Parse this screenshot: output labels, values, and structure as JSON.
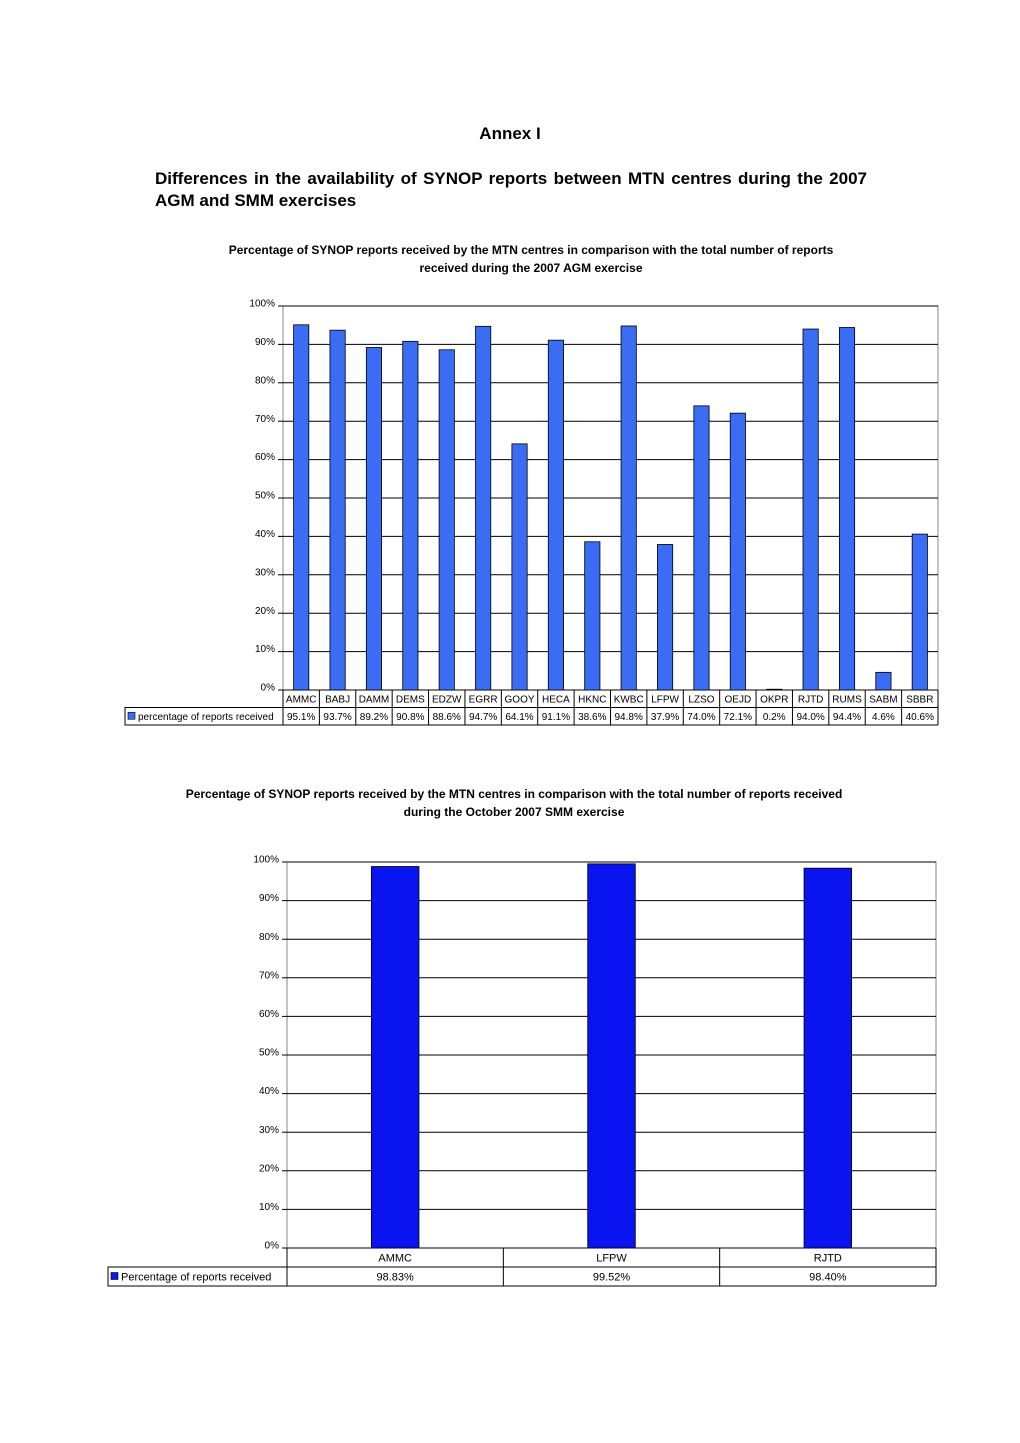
{
  "header": {
    "annex": "Annex I",
    "heading": "Differences in the availability of SYNOP reports between MTN centres during the 2007 AGM and SMM exercises"
  },
  "chart_data": [
    {
      "type": "bar",
      "title": "Percentage of SYNOP reports received by the MTN centres in comparison with the total number of reports received during the 2007 AGM exercise",
      "categories": [
        "AMMC",
        "BABJ",
        "DAMM",
        "DEMS",
        "EDZW",
        "EGRR",
        "GOOY",
        "HECA",
        "HKNC",
        "KWBC",
        "LFPW",
        "LZSO",
        "OEJD",
        "OKPR",
        "RJTD",
        "RUMS",
        "SABM",
        "SBBR"
      ],
      "series": [
        {
          "name": "percentage of reports received",
          "color": "#3a6cf4",
          "values": [
            95.1,
            93.7,
            89.2,
            90.8,
            88.6,
            94.7,
            64.1,
            91.1,
            38.6,
            94.8,
            37.9,
            74.0,
            72.1,
            0.2,
            94.0,
            94.4,
            4.6,
            40.6
          ],
          "value_labels": [
            "95.1%",
            "93.7%",
            "89.2%",
            "90.8%",
            "88.6%",
            "94.7%",
            "64.1%",
            "91.1%",
            "38.6%",
            "94.8%",
            "37.9%",
            "74.0%",
            "72.1%",
            "0.2%",
            "94.0%",
            "94.4%",
            "4.6%",
            "40.6%"
          ]
        }
      ],
      "ylim": [
        0,
        100
      ],
      "yticks": [
        {
          "value": 0,
          "label": "0%"
        },
        {
          "value": 10,
          "label": "10%"
        },
        {
          "value": 20,
          "label": "20%"
        },
        {
          "value": 30,
          "label": "30%"
        },
        {
          "value": 40,
          "label": "40%"
        },
        {
          "value": 50,
          "label": "50%"
        },
        {
          "value": 60,
          "label": "60%"
        },
        {
          "value": 70,
          "label": "70%"
        },
        {
          "value": 80,
          "label": "80%"
        },
        {
          "value": 90,
          "label": "90%"
        },
        {
          "value": 100,
          "label": "100%"
        }
      ],
      "grid": true
    },
    {
      "type": "bar",
      "title": "Percentage of SYNOP reports received by the MTN centres in comparison with the total number of reports received during the October 2007 SMM exercise",
      "categories": [
        "AMMC",
        "LFPW",
        "RJTD"
      ],
      "series": [
        {
          "name": "Percentage of reports received",
          "color": "#0a14f0",
          "values": [
            98.83,
            99.52,
            98.4
          ],
          "value_labels": [
            "98.83%",
            "99.52%",
            "98.40%"
          ]
        }
      ],
      "ylim": [
        0,
        100
      ],
      "yticks": [
        {
          "value": 0,
          "label": "0%"
        },
        {
          "value": 10,
          "label": "10%"
        },
        {
          "value": 20,
          "label": "20%"
        },
        {
          "value": 30,
          "label": "30%"
        },
        {
          "value": 40,
          "label": "40%"
        },
        {
          "value": 50,
          "label": "50%"
        },
        {
          "value": 60,
          "label": "60%"
        },
        {
          "value": 70,
          "label": "70%"
        },
        {
          "value": 80,
          "label": "80%"
        },
        {
          "value": 90,
          "label": "90%"
        },
        {
          "value": 100,
          "label": "100%"
        }
      ],
      "grid": true
    }
  ]
}
